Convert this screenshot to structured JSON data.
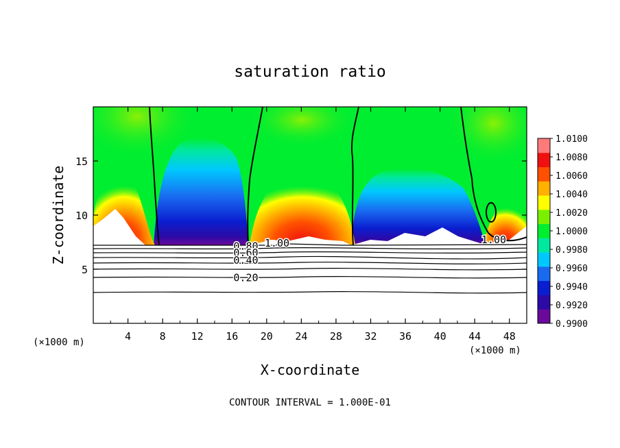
{
  "chart_data": {
    "type": "heatmap",
    "title": "saturation ratio",
    "xlabel": "X-coordinate",
    "ylabel": "Z-coordinate",
    "x_unit_label": "(×1000 m)",
    "z_unit_label": "(×1000 m)",
    "footer": "CONTOUR INTERVAL = 1.000E-01",
    "xlim": [
      0,
      50
    ],
    "ylim": [
      0,
      20
    ],
    "x_ticks": [
      4,
      8,
      12,
      16,
      20,
      24,
      28,
      32,
      36,
      40,
      44,
      48
    ],
    "x_tick_labels": [
      "4",
      "8",
      "12",
      "16",
      "20",
      "24",
      "28",
      "32",
      "36",
      "40",
      "44",
      "48"
    ],
    "y_ticks": [
      5,
      10,
      15
    ],
    "y_tick_labels": [
      "5",
      "10",
      "15"
    ],
    "colorbar": {
      "range": [
        0.99,
        1.01
      ],
      "labels": [
        "1.0100",
        "1.0080",
        "1.0060",
        "1.0040",
        "1.0020",
        "1.0000",
        "0.9980",
        "0.9960",
        "0.9940",
        "0.9920",
        "0.9900"
      ],
      "colors": [
        "#6a0a9a",
        "#2c0aa6",
        "#0a1ecf",
        "#1a6af0",
        "#00c8ff",
        "#00e8a0",
        "#00ee30",
        "#7af000",
        "#ffff00",
        "#ffb000",
        "#ff5000",
        "#f01010",
        "#ff7a7a"
      ]
    },
    "contour_labels": [
      {
        "text": "1.00",
        "x": 21.2,
        "z": 7.1
      },
      {
        "text": "1.00",
        "x": 46.2,
        "z": 7.4
      },
      {
        "text": "0.80",
        "x": 17.6,
        "z": 6.8
      },
      {
        "text": "0.60",
        "x": 17.6,
        "z": 6.2
      },
      {
        "text": "0.40",
        "x": 17.6,
        "z": 5.5
      },
      {
        "text": "0.20",
        "x": 17.6,
        "z": 3.9
      }
    ]
  }
}
